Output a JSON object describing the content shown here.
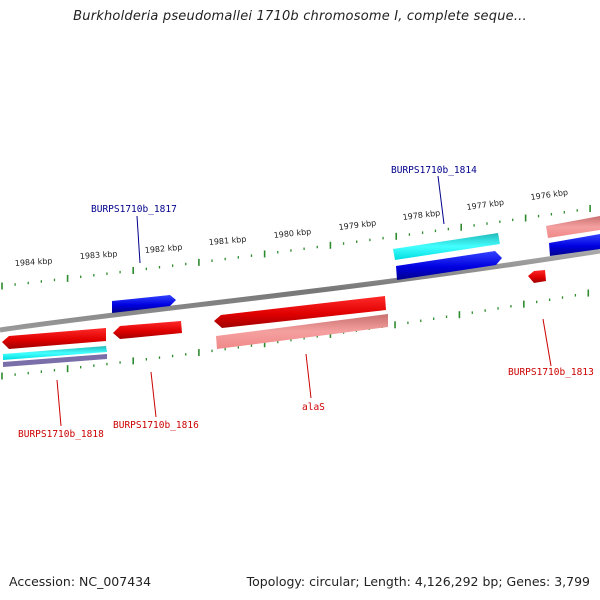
{
  "header": {
    "title": "Burkholderia pseudomallei 1710b chromosome I, complete seque..."
  },
  "scale": {
    "ticks": [
      "1984 kbp",
      "1983 kbp",
      "1982 kbp",
      "1981 kbp",
      "1980 kbp",
      "1979 kbp",
      "1978 kbp",
      "1977 kbp",
      "1976 kbp"
    ]
  },
  "genes": {
    "outer_labels": [
      "BURPS1710b_1817",
      "BURPS1710b_1814"
    ],
    "inner_labels": [
      "BURPS1710b_1818",
      "BURPS1710b_1816",
      "alaS",
      "BURPS1710b_1813"
    ]
  },
  "footer": {
    "accession": "Accession: NC_007434",
    "summary": "Topology: circular; Length: 4,126,292 bp; Genes: 3,799"
  },
  "colors": {
    "forward": "#0000dd",
    "forward_light": "#00e0e8",
    "reverse": "#ee0000",
    "reverse_light": "#f08a8a",
    "backbone": "#888888",
    "ticks": "#2e8b2e",
    "outer_label": "#00008b",
    "inner_label": "#cc0000"
  }
}
